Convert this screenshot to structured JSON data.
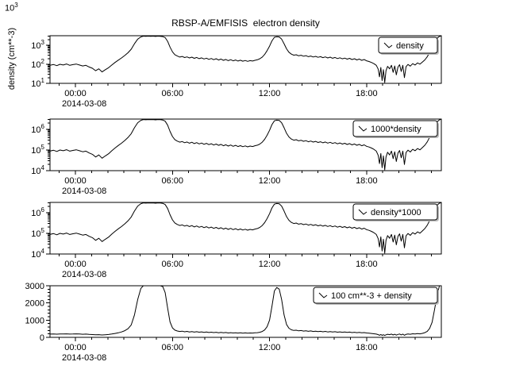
{
  "title": "RBSP-A/EMFISIS  electron density",
  "corner_label": {
    "base": "10",
    "exp": "3"
  },
  "y_axis_title": "density (cm**-3)",
  "line_color": "#000000",
  "x_axis": {
    "tick_hours": [
      0,
      6,
      12,
      18
    ],
    "tick_labels": [
      "00:00",
      "06:00",
      "12:00",
      "18:00"
    ],
    "minor_step_hours": 1,
    "range_hours": [
      -1.57,
      22.62
    ],
    "date_label": "2014-03-08"
  },
  "chart_data": {
    "type": "line",
    "title": "RBSP-A/EMFISIS  electron density",
    "x_unit": "UTC time on 2014-03-08, hours",
    "legend_position": "top-right",
    "panels": [
      {
        "legend": "density",
        "scale": "log",
        "ylim": [
          10,
          3162
        ],
        "y_tick_exponents": [
          1,
          2,
          3
        ],
        "transform": {
          "mul": 1,
          "add": 0
        }
      },
      {
        "legend": "1000*density",
        "scale": "log",
        "ylim": [
          10000,
          3162000
        ],
        "y_tick_exponents": [
          4,
          5,
          6
        ],
        "transform": {
          "mul": 1000,
          "add": 0
        }
      },
      {
        "legend": "density*1000",
        "scale": "log",
        "ylim": [
          10000,
          3162000
        ],
        "y_tick_exponents": [
          4,
          5,
          6
        ],
        "transform": {
          "mul": 1000,
          "add": 0
        }
      },
      {
        "legend": "100 cm**-3 + density",
        "scale": "linear",
        "ylim": [
          0,
          3000
        ],
        "y_tick_values": [
          0,
          1000,
          2000,
          3000
        ],
        "y_minor_step": 200,
        "transform": {
          "mul": 1,
          "add": 100
        }
      }
    ],
    "base_series": {
      "name": "density",
      "units": "cm**-3",
      "points": [
        [
          -1.55,
          90
        ],
        [
          -1.35,
          97
        ],
        [
          -1.15,
          85
        ],
        [
          -0.95,
          100
        ],
        [
          -0.75,
          92
        ],
        [
          -0.55,
          104
        ],
        [
          -0.35,
          88
        ],
        [
          -0.15,
          96
        ],
        [
          0.05,
          103
        ],
        [
          0.25,
          92
        ],
        [
          0.45,
          82
        ],
        [
          0.65,
          88
        ],
        [
          0.85,
          72
        ],
        [
          1.05,
          62
        ],
        [
          1.25,
          46
        ],
        [
          1.45,
          58
        ],
        [
          1.65,
          40
        ],
        [
          1.85,
          52
        ],
        [
          2.05,
          66
        ],
        [
          2.25,
          92
        ],
        [
          2.45,
          125
        ],
        [
          2.65,
          165
        ],
        [
          2.85,
          215
        ],
        [
          3.05,
          290
        ],
        [
          3.25,
          400
        ],
        [
          3.45,
          620
        ],
        [
          3.65,
          1200
        ],
        [
          3.85,
          2100
        ],
        [
          4.05,
          2750
        ],
        [
          4.2,
          3000
        ],
        [
          4.35,
          2920
        ],
        [
          4.5,
          3000
        ],
        [
          4.65,
          2950
        ],
        [
          4.8,
          3000
        ],
        [
          4.95,
          2900
        ],
        [
          5.1,
          3000
        ],
        [
          5.25,
          2960
        ],
        [
          5.4,
          2850
        ],
        [
          5.55,
          2500
        ],
        [
          5.7,
          1600
        ],
        [
          5.85,
          800
        ],
        [
          6.0,
          450
        ],
        [
          6.15,
          320
        ],
        [
          6.3,
          270
        ],
        [
          6.45,
          240
        ],
        [
          6.6,
          258
        ],
        [
          6.75,
          225
        ],
        [
          6.9,
          245
        ],
        [
          7.05,
          215
        ],
        [
          7.2,
          238
        ],
        [
          7.35,
          205
        ],
        [
          7.5,
          228
        ],
        [
          7.65,
          198
        ],
        [
          7.8,
          218
        ],
        [
          7.95,
          190
        ],
        [
          8.1,
          210
        ],
        [
          8.25,
          182
        ],
        [
          8.4,
          202
        ],
        [
          8.55,
          175
        ],
        [
          8.7,
          195
        ],
        [
          8.85,
          168
        ],
        [
          9.0,
          188
        ],
        [
          9.15,
          162
        ],
        [
          9.3,
          180
        ],
        [
          9.45,
          156
        ],
        [
          9.6,
          174
        ],
        [
          9.75,
          152
        ],
        [
          9.9,
          168
        ],
        [
          10.05,
          148
        ],
        [
          10.2,
          163
        ],
        [
          10.35,
          145
        ],
        [
          10.5,
          158
        ],
        [
          10.65,
          143
        ],
        [
          10.8,
          156
        ],
        [
          10.95,
          148
        ],
        [
          11.1,
          162
        ],
        [
          11.25,
          172
        ],
        [
          11.4,
          195
        ],
        [
          11.55,
          240
        ],
        [
          11.7,
          330
        ],
        [
          11.85,
          520
        ],
        [
          12.0,
          900
        ],
        [
          12.15,
          1700
        ],
        [
          12.3,
          2600
        ],
        [
          12.45,
          2800
        ],
        [
          12.6,
          2700
        ],
        [
          12.75,
          2100
        ],
        [
          12.9,
          1200
        ],
        [
          13.05,
          650
        ],
        [
          13.2,
          430
        ],
        [
          13.35,
          340
        ],
        [
          13.5,
          300
        ],
        [
          13.65,
          315
        ],
        [
          13.8,
          280
        ],
        [
          13.95,
          298
        ],
        [
          14.1,
          265
        ],
        [
          14.25,
          285
        ],
        [
          14.4,
          252
        ],
        [
          14.55,
          272
        ],
        [
          14.7,
          242
        ],
        [
          14.85,
          262
        ],
        [
          15.0,
          232
        ],
        [
          15.15,
          252
        ],
        [
          15.3,
          224
        ],
        [
          15.45,
          244
        ],
        [
          15.6,
          216
        ],
        [
          15.75,
          236
        ],
        [
          15.9,
          208
        ],
        [
          16.05,
          228
        ],
        [
          16.2,
          200
        ],
        [
          16.35,
          220
        ],
        [
          16.5,
          194
        ],
        [
          16.65,
          212
        ],
        [
          16.8,
          186
        ],
        [
          16.95,
          205
        ],
        [
          17.1,
          178
        ],
        [
          17.25,
          196
        ],
        [
          17.4,
          170
        ],
        [
          17.55,
          188
        ],
        [
          17.7,
          162
        ],
        [
          17.85,
          178
        ],
        [
          18.0,
          152
        ],
        [
          18.15,
          140
        ],
        [
          18.3,
          125
        ],
        [
          18.45,
          108
        ],
        [
          18.6,
          88
        ],
        [
          18.72,
          55
        ],
        [
          18.8,
          22
        ],
        [
          18.88,
          68
        ],
        [
          18.96,
          14
        ],
        [
          19.04,
          52
        ],
        [
          19.12,
          11
        ],
        [
          19.2,
          46
        ],
        [
          19.3,
          78
        ],
        [
          19.42,
          58
        ],
        [
          19.54,
          88
        ],
        [
          19.64,
          38
        ],
        [
          19.74,
          82
        ],
        [
          19.84,
          28
        ],
        [
          19.94,
          72
        ],
        [
          20.04,
          95
        ],
        [
          20.14,
          42
        ],
        [
          20.24,
          88
        ],
        [
          20.34,
          20
        ],
        [
          20.44,
          76
        ],
        [
          20.56,
          98
        ],
        [
          20.7,
          80
        ],
        [
          20.85,
          108
        ],
        [
          21.0,
          92
        ],
        [
          21.15,
          118
        ],
        [
          21.3,
          102
        ],
        [
          21.45,
          132
        ],
        [
          21.6,
          170
        ],
        [
          21.75,
          250
        ],
        [
          21.9,
          420
        ],
        [
          22.05,
          780
        ],
        [
          22.2,
          1500
        ],
        [
          22.35,
          2300
        ],
        [
          22.5,
          2900
        ],
        [
          22.62,
          3100
        ]
      ]
    }
  }
}
